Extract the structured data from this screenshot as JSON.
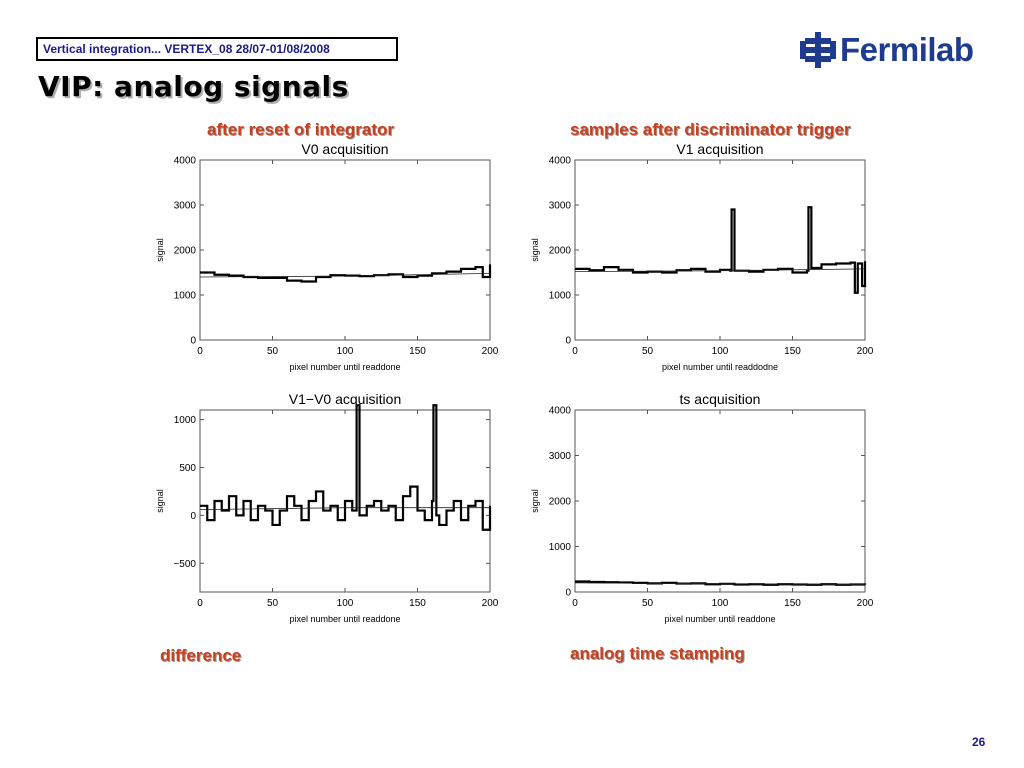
{
  "header": {
    "conference": "Vertical integration... VERTEX_08 28/07-01/08/2008"
  },
  "logo": {
    "text": "Fermilab",
    "icon": "fermilab-logo-icon",
    "color": "#1f3b8f"
  },
  "page": {
    "title": "VIP: analog signals",
    "number": "26"
  },
  "captions": {
    "v0": "after reset of integrator",
    "v1": "samples after discriminator trigger",
    "diff": "difference",
    "ts": "analog time stamping",
    "color": "#c8401e"
  },
  "chart_data": [
    {
      "id": "v0",
      "type": "line",
      "title": "V0 acquisition",
      "xlabel": "pixel  number   until   readdone",
      "ylabel": "signal",
      "xlim": [
        0,
        200
      ],
      "ylim": [
        0,
        4000
      ],
      "xticks": [
        0,
        50,
        100,
        150,
        200
      ],
      "yticks": [
        0,
        1000,
        2000,
        3000,
        4000
      ],
      "xticklabels": [
        "0",
        "50",
        "100",
        "150",
        "200"
      ],
      "yticklabels": [
        "0",
        "1000",
        "2000",
        "3000",
        "4000"
      ],
      "series": [
        {
          "style": "step",
          "points": [
            [
              0,
              1500
            ],
            [
              10,
              1450
            ],
            [
              20,
              1430
            ],
            [
              30,
              1400
            ],
            [
              40,
              1380
            ],
            [
              50,
              1380
            ],
            [
              60,
              1320
            ],
            [
              70,
              1300
            ],
            [
              80,
              1400
            ],
            [
              90,
              1440
            ],
            [
              100,
              1430
            ],
            [
              110,
              1420
            ],
            [
              120,
              1440
            ],
            [
              130,
              1460
            ],
            [
              140,
              1400
            ],
            [
              150,
              1430
            ],
            [
              160,
              1480
            ],
            [
              170,
              1520
            ],
            [
              180,
              1580
            ],
            [
              190,
              1620
            ],
            [
              195,
              1400
            ],
            [
              200,
              1680
            ]
          ]
        },
        {
          "style": "fit",
          "points": [
            [
              0,
              1400
            ],
            [
              100,
              1420
            ],
            [
              200,
              1480
            ]
          ]
        }
      ]
    },
    {
      "id": "v1",
      "type": "line",
      "title": "V1 acquisition",
      "xlabel": "pixel  number   until   readdodne",
      "ylabel": "signal",
      "xlim": [
        0,
        200
      ],
      "ylim": [
        0,
        4000
      ],
      "xticks": [
        0,
        50,
        100,
        150,
        200
      ],
      "yticks": [
        0,
        1000,
        2000,
        3000,
        4000
      ],
      "xticklabels": [
        "0",
        "50",
        "100",
        "150",
        "200"
      ],
      "yticklabels": [
        "0",
        "1000",
        "2000",
        "3000",
        "4000"
      ],
      "series": [
        {
          "style": "step",
          "points": [
            [
              0,
              1580
            ],
            [
              10,
              1550
            ],
            [
              20,
              1620
            ],
            [
              30,
              1560
            ],
            [
              40,
              1500
            ],
            [
              50,
              1520
            ],
            [
              60,
              1500
            ],
            [
              70,
              1550
            ],
            [
              80,
              1580
            ],
            [
              90,
              1520
            ],
            [
              100,
              1560
            ],
            [
              107,
              1540
            ],
            [
              108,
              2900
            ],
            [
              110,
              1540
            ],
            [
              120,
              1520
            ],
            [
              130,
              1560
            ],
            [
              140,
              1580
            ],
            [
              150,
              1500
            ],
            [
              160,
              1540
            ],
            [
              161,
              2950
            ],
            [
              163,
              1600
            ],
            [
              170,
              1680
            ],
            [
              180,
              1700
            ],
            [
              190,
              1720
            ],
            [
              193,
              1050
            ],
            [
              195,
              1700
            ],
            [
              198,
              1200
            ],
            [
              200,
              1750
            ]
          ]
        },
        {
          "style": "fit",
          "points": [
            [
              0,
              1520
            ],
            [
              100,
              1540
            ],
            [
              200,
              1580
            ]
          ]
        }
      ]
    },
    {
      "id": "diff",
      "type": "line",
      "title": "V1−V0 acquisition",
      "xlabel": "pixel  number   until   readdone",
      "ylabel": "signal",
      "xlim": [
        0,
        200
      ],
      "ylim": [
        -800,
        1100
      ],
      "xticks": [
        0,
        50,
        100,
        150,
        200
      ],
      "yticks": [
        -500,
        0,
        500,
        1000
      ],
      "xticklabels": [
        "0",
        "50",
        "100",
        "150",
        "200"
      ],
      "yticklabels": [
        "−500",
        "0",
        "500",
        "1000"
      ],
      "series": [
        {
          "style": "step",
          "points": [
            [
              0,
              100
            ],
            [
              5,
              -50
            ],
            [
              10,
              150
            ],
            [
              15,
              50
            ],
            [
              20,
              200
            ],
            [
              25,
              0
            ],
            [
              30,
              150
            ],
            [
              35,
              -50
            ],
            [
              40,
              100
            ],
            [
              45,
              50
            ],
            [
              50,
              -100
            ],
            [
              55,
              50
            ],
            [
              60,
              200
            ],
            [
              65,
              100
            ],
            [
              70,
              -50
            ],
            [
              75,
              150
            ],
            [
              80,
              250
            ],
            [
              85,
              50
            ],
            [
              90,
              100
            ],
            [
              95,
              -50
            ],
            [
              100,
              150
            ],
            [
              105,
              50
            ],
            [
              108,
              1150
            ],
            [
              110,
              0
            ],
            [
              115,
              100
            ],
            [
              120,
              150
            ],
            [
              125,
              50
            ],
            [
              130,
              100
            ],
            [
              135,
              -50
            ],
            [
              140,
              200
            ],
            [
              145,
              300
            ],
            [
              150,
              50
            ],
            [
              155,
              -50
            ],
            [
              160,
              150
            ],
            [
              161,
              1150
            ],
            [
              163,
              0
            ],
            [
              165,
              -100
            ],
            [
              170,
              50
            ],
            [
              175,
              150
            ],
            [
              180,
              -50
            ],
            [
              185,
              100
            ],
            [
              190,
              150
            ],
            [
              195,
              -150
            ],
            [
              200,
              100
            ]
          ]
        },
        {
          "style": "fit",
          "points": [
            [
              0,
              60
            ],
            [
              100,
              80
            ],
            [
              200,
              80
            ]
          ]
        }
      ]
    },
    {
      "id": "ts",
      "type": "line",
      "title": "ts acquisition",
      "xlabel": "pixel  number   until   readdone",
      "ylabel": "signal",
      "xlim": [
        0,
        200
      ],
      "ylim": [
        0,
        4000
      ],
      "xticks": [
        0,
        50,
        100,
        150,
        200
      ],
      "yticks": [
        0,
        1000,
        2000,
        3000,
        4000
      ],
      "xticklabels": [
        "0",
        "50",
        "100",
        "150",
        "200"
      ],
      "yticklabels": [
        "0",
        "1000",
        "2000",
        "3000",
        "4000"
      ],
      "series": [
        {
          "style": "step",
          "points": [
            [
              0,
              230
            ],
            [
              10,
              220
            ],
            [
              20,
              215
            ],
            [
              30,
              210
            ],
            [
              40,
              200
            ],
            [
              50,
              190
            ],
            [
              60,
              200
            ],
            [
              70,
              185
            ],
            [
              80,
              190
            ],
            [
              90,
              170
            ],
            [
              100,
              180
            ],
            [
              110,
              165
            ],
            [
              120,
              170
            ],
            [
              130,
              160
            ],
            [
              140,
              170
            ],
            [
              150,
              165
            ],
            [
              160,
              160
            ],
            [
              170,
              170
            ],
            [
              180,
              160
            ],
            [
              190,
              165
            ],
            [
              200,
              160
            ]
          ]
        },
        {
          "style": "fit",
          "points": [
            [
              0,
              200
            ],
            [
              100,
              180
            ],
            [
              200,
              165
            ]
          ]
        }
      ]
    }
  ]
}
